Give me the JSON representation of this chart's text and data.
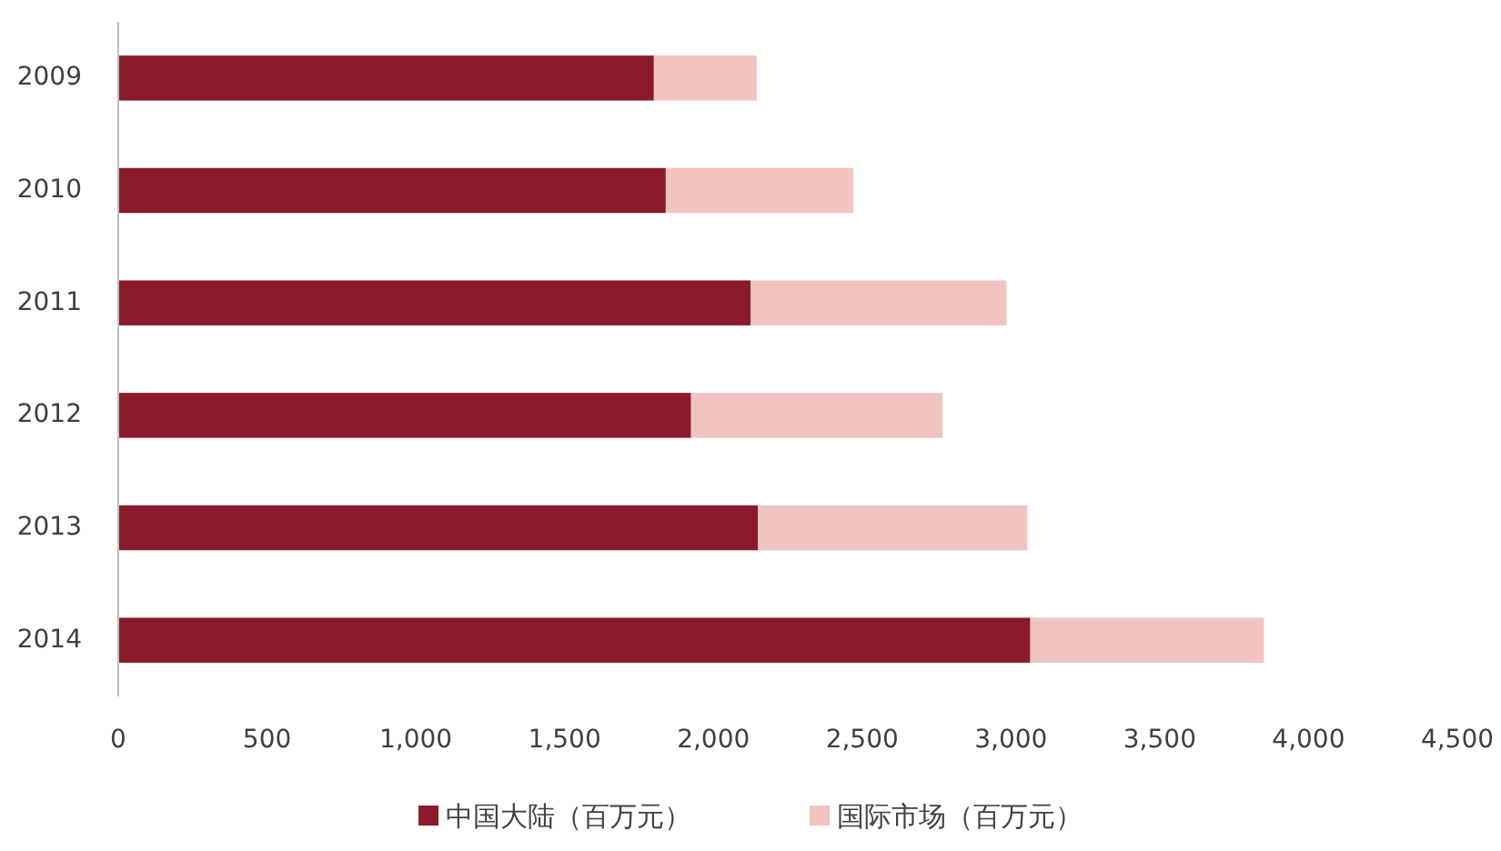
{
  "chart_data": {
    "type": "bar",
    "orientation": "horizontal",
    "stacked": true,
    "categories": [
      "2009",
      "2010",
      "2011",
      "2012",
      "2013",
      "2014"
    ],
    "series": [
      {
        "name": "中国大陆（百万元）",
        "color": "#8b1a2b",
        "values": [
          1800,
          1840,
          2125,
          1925,
          2150,
          3065
        ]
      },
      {
        "name": "国际市场（百万元）",
        "color": "#f2c4bf",
        "values": [
          345,
          630,
          860,
          845,
          905,
          785
        ]
      }
    ],
    "xlim": [
      0,
      4500
    ],
    "xticks": [
      0,
      {
        "value": 500,
        "label": "500"
      },
      {
        "value": 1000,
        "label": "1,000"
      },
      {
        "value": 1500,
        "label": "1,500"
      },
      {
        "value": 2000,
        "label": "2,000"
      },
      {
        "value": 2500,
        "label": "2,500"
      },
      {
        "value": 3000,
        "label": "3,000"
      },
      {
        "value": 3500,
        "label": "3,500"
      },
      {
        "value": 4000,
        "label": "4,000"
      },
      {
        "value": 4500,
        "label": "4,500"
      }
    ],
    "grid": false,
    "legend": "bottom"
  }
}
